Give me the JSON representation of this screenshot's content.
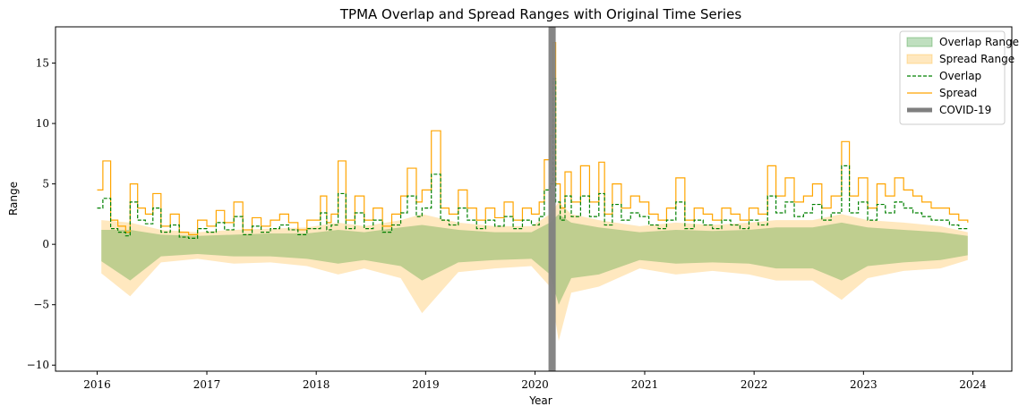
{
  "chart_data": {
    "type": "line",
    "title": "TPMA Overlap and Spread Ranges with Original Time Series",
    "xlabel": "Year",
    "ylabel": "Range",
    "xlim": [
      "2015-08-15",
      "2024-05-10"
    ],
    "ylim": [
      -10.5,
      18
    ],
    "x_ticks": [
      "2016",
      "2017",
      "2018",
      "2019",
      "2020",
      "2021",
      "2022",
      "2023",
      "2024"
    ],
    "y_ticks": [
      -10,
      -5,
      0,
      5,
      10,
      15
    ],
    "y_tick_labels": [
      "−10",
      "−5",
      "0",
      "5",
      "10",
      "15"
    ],
    "grid": false,
    "legend_position": "upper right",
    "legend": [
      {
        "label": "Overlap Range",
        "kind": "fill",
        "color": "#008000"
      },
      {
        "label": "Spread Range",
        "kind": "fill",
        "color": "#ffa500"
      },
      {
        "label": "Overlap",
        "kind": "dashed-line",
        "color": "#008000"
      },
      {
        "label": "Spread",
        "kind": "line",
        "color": "#ffa500"
      },
      {
        "label": "COVID-19",
        "kind": "thick-line",
        "color": "#7f7f7f"
      }
    ],
    "covid_band": {
      "start": "2020-02-15",
      "end": "2020-03-10"
    },
    "series": [
      {
        "name": "Spread",
        "style": "solid",
        "color": "#ffa500",
        "x": [
          "2016-01-01",
          "2016-01-20",
          "2016-02-15",
          "2016-03-10",
          "2016-04-05",
          "2016-04-20",
          "2016-05-15",
          "2016-06-10",
          "2016-07-05",
          "2016-08-01",
          "2016-09-01",
          "2016-10-01",
          "2016-11-01",
          "2016-12-01",
          "2017-01-01",
          "2017-02-01",
          "2017-03-01",
          "2017-04-01",
          "2017-05-01",
          "2017-06-01",
          "2017-07-01",
          "2017-08-01",
          "2017-09-01",
          "2017-10-01",
          "2017-11-01",
          "2017-12-01",
          "2018-01-15",
          "2018-02-05",
          "2018-02-20",
          "2018-03-15",
          "2018-04-10",
          "2018-05-10",
          "2018-06-10",
          "2018-07-10",
          "2018-08-10",
          "2018-09-10",
          "2018-10-10",
          "2018-11-01",
          "2018-12-01",
          "2018-12-20",
          "2019-01-20",
          "2019-02-20",
          "2019-03-20",
          "2019-04-20",
          "2019-05-20",
          "2019-06-20",
          "2019-07-20",
          "2019-08-20",
          "2019-09-20",
          "2019-10-20",
          "2019-11-20",
          "2019-12-20",
          "2020-01-15",
          "2020-02-01",
          "2020-02-20",
          "2020-03-01",
          "2020-03-10",
          "2020-03-25",
          "2020-04-10",
          "2020-05-01",
          "2020-06-01",
          "2020-07-01",
          "2020-08-01",
          "2020-08-20",
          "2020-09-15",
          "2020-10-15",
          "2020-11-15",
          "2020-12-15",
          "2021-01-15",
          "2021-02-15",
          "2021-03-15",
          "2021-04-15",
          "2021-05-15",
          "2021-06-15",
          "2021-07-15",
          "2021-08-15",
          "2021-09-15",
          "2021-10-15",
          "2021-11-15",
          "2021-12-15",
          "2022-01-15",
          "2022-02-15",
          "2022-03-15",
          "2022-04-15",
          "2022-05-15",
          "2022-06-15",
          "2022-07-15",
          "2022-08-15",
          "2022-09-15",
          "2022-10-20",
          "2022-11-15",
          "2022-12-15",
          "2023-01-15",
          "2023-02-15",
          "2023-03-15",
          "2023-04-15",
          "2023-05-15",
          "2023-06-15",
          "2023-07-15",
          "2023-08-15",
          "2023-09-15",
          "2023-10-15",
          "2023-11-15",
          "2023-12-15"
        ],
        "values": [
          4.5,
          6.9,
          2.0,
          1.5,
          1.0,
          5.0,
          3.0,
          2.5,
          4.2,
          1.5,
          2.5,
          1.0,
          0.8,
          2.0,
          1.5,
          2.8,
          1.8,
          3.5,
          1.2,
          2.2,
          1.5,
          2.0,
          2.5,
          1.8,
          1.2,
          2.0,
          4.0,
          1.8,
          2.5,
          6.9,
          2.0,
          4.0,
          2.0,
          3.0,
          1.5,
          2.5,
          4.0,
          6.3,
          3.5,
          4.5,
          9.4,
          3.0,
          2.5,
          4.5,
          3.0,
          2.0,
          3.0,
          2.2,
          3.5,
          2.0,
          3.0,
          2.5,
          3.5,
          7.0,
          9.0,
          16.7,
          5.0,
          3.0,
          6.0,
          3.5,
          6.5,
          3.5,
          6.8,
          2.5,
          5.0,
          3.0,
          4.0,
          3.5,
          2.5,
          2.0,
          3.0,
          5.5,
          2.0,
          3.0,
          2.5,
          2.0,
          3.0,
          2.5,
          2.0,
          3.0,
          2.5,
          6.5,
          4.0,
          5.5,
          3.5,
          4.0,
          5.0,
          3.0,
          4.0,
          8.5,
          4.0,
          5.5,
          3.0,
          5.0,
          4.0,
          5.5,
          4.5,
          4.0,
          3.5,
          3.0,
          3.0,
          2.5,
          2.0,
          1.8
        ]
      },
      {
        "name": "Overlap",
        "style": "dashed",
        "color": "#008000",
        "x": [
          "2016-01-01",
          "2016-01-20",
          "2016-02-15",
          "2016-03-10",
          "2016-04-05",
          "2016-04-20",
          "2016-05-15",
          "2016-06-10",
          "2016-07-05",
          "2016-08-01",
          "2016-09-01",
          "2016-10-01",
          "2016-11-01",
          "2016-12-01",
          "2017-01-01",
          "2017-02-01",
          "2017-03-01",
          "2017-04-01",
          "2017-05-01",
          "2017-06-01",
          "2017-07-01",
          "2017-08-01",
          "2017-09-01",
          "2017-10-01",
          "2017-11-01",
          "2017-12-01",
          "2018-01-15",
          "2018-02-05",
          "2018-02-20",
          "2018-03-15",
          "2018-04-10",
          "2018-05-10",
          "2018-06-10",
          "2018-07-10",
          "2018-08-10",
          "2018-09-10",
          "2018-10-10",
          "2018-11-01",
          "2018-12-01",
          "2018-12-20",
          "2019-01-20",
          "2019-02-20",
          "2019-03-20",
          "2019-04-20",
          "2019-05-20",
          "2019-06-20",
          "2019-07-20",
          "2019-08-20",
          "2019-09-20",
          "2019-10-20",
          "2019-11-20",
          "2019-12-20",
          "2020-01-15",
          "2020-02-01",
          "2020-02-20",
          "2020-03-01",
          "2020-03-10",
          "2020-03-25",
          "2020-04-10",
          "2020-05-01",
          "2020-06-01",
          "2020-07-01",
          "2020-08-01",
          "2020-08-20",
          "2020-09-15",
          "2020-10-15",
          "2020-11-15",
          "2020-12-15",
          "2021-01-15",
          "2021-02-15",
          "2021-03-15",
          "2021-04-15",
          "2021-05-15",
          "2021-06-15",
          "2021-07-15",
          "2021-08-15",
          "2021-09-15",
          "2021-10-15",
          "2021-11-15",
          "2021-12-15",
          "2022-01-15",
          "2022-02-15",
          "2022-03-15",
          "2022-04-15",
          "2022-05-15",
          "2022-06-15",
          "2022-07-15",
          "2022-08-15",
          "2022-09-15",
          "2022-10-20",
          "2022-11-15",
          "2022-12-15",
          "2023-01-15",
          "2023-02-15",
          "2023-03-15",
          "2023-04-15",
          "2023-05-15",
          "2023-06-15",
          "2023-07-15",
          "2023-08-15",
          "2023-09-15",
          "2023-10-15",
          "2023-11-15",
          "2023-12-15"
        ],
        "values": [
          3.0,
          3.8,
          1.3,
          1.0,
          0.7,
          3.5,
          2.0,
          1.7,
          3.0,
          1.0,
          1.6,
          0.6,
          0.5,
          1.3,
          1.0,
          1.8,
          1.2,
          2.3,
          0.8,
          1.5,
          1.0,
          1.3,
          1.6,
          1.2,
          0.8,
          1.3,
          2.6,
          1.2,
          1.6,
          4.2,
          1.3,
          2.6,
          1.3,
          2.0,
          1.0,
          1.6,
          2.6,
          4.0,
          2.3,
          3.0,
          5.8,
          2.0,
          1.6,
          3.0,
          2.0,
          1.3,
          2.0,
          1.5,
          2.3,
          1.3,
          2.0,
          1.6,
          2.3,
          4.5,
          5.0,
          13.7,
          3.5,
          2.0,
          4.0,
          2.3,
          4.0,
          2.3,
          4.2,
          1.6,
          3.3,
          2.0,
          2.6,
          2.3,
          1.6,
          1.3,
          2.0,
          3.5,
          1.3,
          2.0,
          1.6,
          1.3,
          2.0,
          1.6,
          1.3,
          2.0,
          1.6,
          4.0,
          2.6,
          3.5,
          2.3,
          2.6,
          3.3,
          2.0,
          2.6,
          6.5,
          2.6,
          3.5,
          2.0,
          3.3,
          2.6,
          3.5,
          3.0,
          2.6,
          2.3,
          2.0,
          2.0,
          1.6,
          1.3,
          1.2
        ]
      }
    ],
    "ranges": [
      {
        "name": "Spread Range",
        "color": "#ffa500",
        "x": [
          "2016-01-15",
          "2016-04-20",
          "2016-08-01",
          "2016-12-01",
          "2017-04-01",
          "2017-08-01",
          "2017-12-01",
          "2018-03-15",
          "2018-06-10",
          "2018-10-10",
          "2018-12-20",
          "2019-04-20",
          "2019-08-20",
          "2019-12-20",
          "2020-02-20",
          "2020-03-20",
          "2020-05-01",
          "2020-08-01",
          "2020-12-15",
          "2021-04-15",
          "2021-08-15",
          "2021-12-15",
          "2022-03-15",
          "2022-07-15",
          "2022-10-20",
          "2023-01-15",
          "2023-05-15",
          "2023-09-15",
          "2023-12-15"
        ],
        "low": [
          -2.4,
          -4.3,
          -1.5,
          -1.2,
          -1.6,
          -1.5,
          -1.8,
          -2.5,
          -2.0,
          -2.8,
          -5.7,
          -2.3,
          -2.0,
          -1.8,
          -3.5,
          -8.0,
          -4.0,
          -3.5,
          -2.0,
          -2.5,
          -2.2,
          -2.5,
          -3.0,
          -3.0,
          -4.6,
          -2.8,
          -2.2,
          -2.0,
          -1.3
        ],
        "high": [
          2.0,
          1.8,
          1.2,
          1.0,
          1.2,
          1.3,
          1.4,
          1.8,
          1.5,
          2.0,
          2.5,
          1.8,
          1.5,
          1.5,
          2.5,
          3.5,
          2.5,
          2.0,
          1.5,
          1.8,
          1.6,
          1.8,
          2.0,
          2.0,
          2.5,
          2.0,
          1.8,
          1.5,
          1.0
        ]
      },
      {
        "name": "Overlap Range",
        "color": "#008000",
        "x": [
          "2016-01-15",
          "2016-04-20",
          "2016-08-01",
          "2016-12-01",
          "2017-04-01",
          "2017-08-01",
          "2017-12-01",
          "2018-03-15",
          "2018-06-10",
          "2018-10-10",
          "2018-12-20",
          "2019-04-20",
          "2019-08-20",
          "2019-12-20",
          "2020-02-20",
          "2020-03-20",
          "2020-05-01",
          "2020-08-01",
          "2020-12-15",
          "2021-04-15",
          "2021-08-15",
          "2021-12-15",
          "2022-03-15",
          "2022-07-15",
          "2022-10-20",
          "2023-01-15",
          "2023-05-15",
          "2023-09-15",
          "2023-12-15"
        ],
        "low": [
          -1.4,
          -3.0,
          -1.0,
          -0.8,
          -1.0,
          -1.0,
          -1.2,
          -1.6,
          -1.3,
          -1.8,
          -3.0,
          -1.5,
          -1.3,
          -1.2,
          -2.5,
          -5.0,
          -2.8,
          -2.5,
          -1.3,
          -1.6,
          -1.5,
          -1.6,
          -2.0,
          -2.0,
          -3.0,
          -1.8,
          -1.5,
          -1.3,
          -0.9
        ],
        "high": [
          1.2,
          1.2,
          0.8,
          0.7,
          0.8,
          0.9,
          0.9,
          1.2,
          1.0,
          1.4,
          1.6,
          1.2,
          1.0,
          1.0,
          1.8,
          2.5,
          1.8,
          1.4,
          1.0,
          1.2,
          1.1,
          1.2,
          1.4,
          1.4,
          1.8,
          1.4,
          1.2,
          1.0,
          0.7
        ]
      }
    ]
  }
}
